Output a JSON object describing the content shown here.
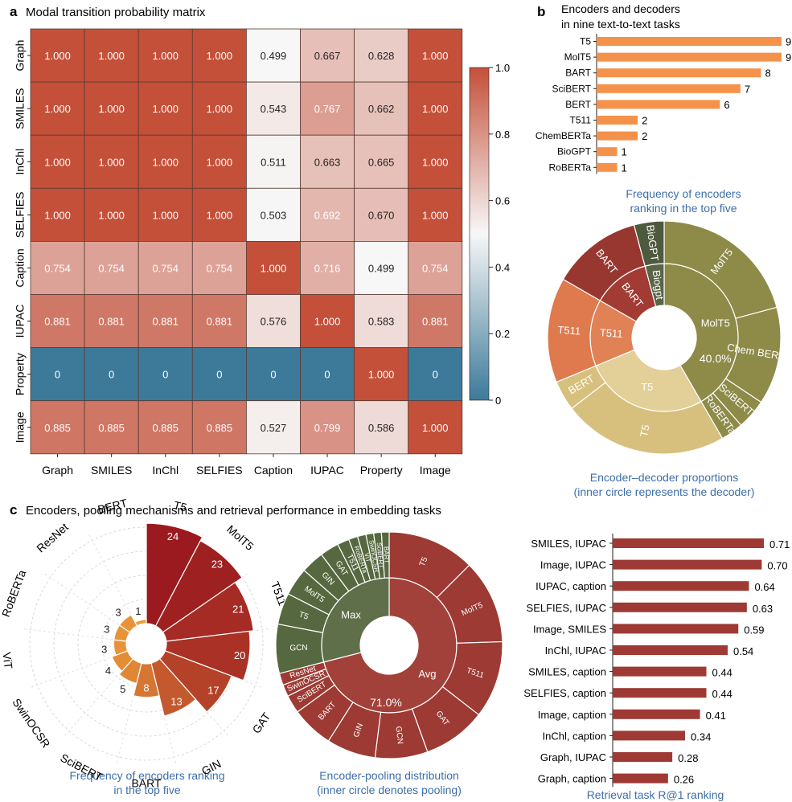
{
  "panel_a": {
    "letter": "a",
    "title": "Modal transition probability matrix",
    "chart_data": {
      "type": "heatmap",
      "rows": [
        "Graph",
        "SMILES",
        "InChl",
        "SELFIES",
        "Caption",
        "IUPAC",
        "Property",
        "Image"
      ],
      "cols": [
        "Graph",
        "SMILES",
        "InChl",
        "SELFIES",
        "Caption",
        "IUPAC",
        "Property",
        "Image"
      ],
      "values": [
        [
          1.0,
          1.0,
          1.0,
          1.0,
          0.499,
          0.667,
          0.628,
          1.0
        ],
        [
          1.0,
          1.0,
          1.0,
          1.0,
          0.543,
          0.767,
          0.662,
          1.0
        ],
        [
          1.0,
          1.0,
          1.0,
          1.0,
          0.511,
          0.663,
          0.665,
          1.0
        ],
        [
          1.0,
          1.0,
          1.0,
          1.0,
          0.503,
          0.692,
          0.67,
          1.0
        ],
        [
          0.754,
          0.754,
          0.754,
          0.754,
          1.0,
          0.716,
          0.499,
          0.754
        ],
        [
          0.881,
          0.881,
          0.881,
          0.881,
          0.576,
          1.0,
          0.583,
          0.881
        ],
        [
          0,
          0,
          0,
          0,
          0,
          0,
          1.0,
          0
        ],
        [
          0.885,
          0.885,
          0.885,
          0.885,
          0.527,
          0.799,
          0.586,
          1.0
        ]
      ],
      "labels": [
        [
          "1.000",
          "1.000",
          "1.000",
          "1.000",
          "0.499",
          "0.667",
          "0.628",
          "1.000"
        ],
        [
          "1.000",
          "1.000",
          "1.000",
          "1.000",
          "0.543",
          "0.767",
          "0.662",
          "1.000"
        ],
        [
          "1.000",
          "1.000",
          "1.000",
          "1.000",
          "0.511",
          "0.663",
          "0.665",
          "1.000"
        ],
        [
          "1.000",
          "1.000",
          "1.000",
          "1.000",
          "0.503",
          "0.692",
          "0.670",
          "1.000"
        ],
        [
          "0.754",
          "0.754",
          "0.754",
          "0.754",
          "1.000",
          "0.716",
          "0.499",
          "0.754"
        ],
        [
          "0.881",
          "0.881",
          "0.881",
          "0.881",
          "0.576",
          "1.000",
          "0.583",
          "0.881"
        ],
        [
          "0",
          "0",
          "0",
          "0",
          "0",
          "0",
          "1.000",
          "0"
        ],
        [
          "0.885",
          "0.885",
          "0.885",
          "0.885",
          "0.527",
          "0.799",
          "0.586",
          "1.000"
        ]
      ],
      "colorbar": {
        "min": 0,
        "max": 1,
        "ticks": [
          "0",
          "0.2",
          "0.4",
          "0.6",
          "0.8",
          "1.0"
        ],
        "colors": [
          "#3d7a9a",
          "#f7f7f7",
          "#c4503a"
        ]
      }
    }
  },
  "panel_b": {
    "letter": "b",
    "title_lines": [
      "Encoders and decoders",
      "in nine text-to-text tasks"
    ],
    "bar_chart": {
      "type": "bar",
      "orientation": "horizontal",
      "categories": [
        "T5",
        "MolT5",
        "BART",
        "SciBERT",
        "BERT",
        "T511",
        "ChemBERTa",
        "BioGPT",
        "RoBERTa"
      ],
      "values": [
        9,
        9,
        8,
        7,
        6,
        2,
        2,
        1,
        1
      ],
      "labels": [
        "9",
        "9",
        "8",
        "7",
        "6",
        "2",
        "2",
        "1",
        "1"
      ],
      "color": "#f4924c",
      "caption_lines": [
        "Frequency of encoders",
        "ranking in the top five"
      ]
    },
    "sunburst": {
      "type": "pie",
      "inner": [
        {
          "label": "MolT5",
          "value": 40
        },
        {
          "label": "T5",
          "value": 26
        },
        {
          "label": "T511",
          "value": 14
        },
        {
          "label": "BART",
          "value": 12
        },
        {
          "label": "Biogpt",
          "value": 4
        }
      ],
      "outer": [
        {
          "label": "MolT5",
          "value": 20,
          "parent": "MolT5"
        },
        {
          "label": "Chem BERTa",
          "value": 13,
          "parent": "MolT5"
        },
        {
          "label": "SciBERT",
          "value": 4,
          "parent": "MolT5"
        },
        {
          "label": "RoBERTa",
          "value": 3,
          "parent": "MolT5"
        },
        {
          "label": "T5",
          "value": 22,
          "parent": "T5"
        },
        {
          "label": "BERT",
          "value": 4,
          "parent": "T5"
        },
        {
          "label": "T511",
          "value": 14,
          "parent": "T511"
        },
        {
          "label": "BART",
          "value": 12,
          "parent": "BART"
        },
        {
          "label": "BioGPT",
          "value": 4,
          "parent": "Biogpt"
        }
      ],
      "center_label": "40.0%",
      "caption_lines": [
        "Encoder–decoder proportions",
        "(inner circle represents the decoder)"
      ]
    }
  },
  "panel_c": {
    "letter": "c",
    "title": "Encoders, pooling mechanisms and retrieval performance in embedding tasks",
    "polar": {
      "type": "bar",
      "categories": [
        "T5",
        "MolT5",
        "T511",
        "GCN",
        "GAT",
        "GIN",
        "BART",
        "SciBERT",
        "SwinOCSR",
        "ViT",
        "RoBERTa",
        "ResNet",
        "BERT"
      ],
      "values": [
        24,
        23,
        21,
        20,
        17,
        13,
        8,
        5,
        4,
        3,
        3,
        3,
        1
      ],
      "labels": [
        "24",
        "23",
        "21",
        "20",
        "17",
        "13",
        "8",
        "5",
        "4",
        "3",
        "3",
        "3",
        "1"
      ],
      "caption_lines": [
        "Frequency of encoders ranking",
        "in the top five"
      ]
    },
    "sunburst": {
      "type": "pie",
      "inner": [
        {
          "label": "Avg",
          "value": 71
        },
        {
          "label": "Max",
          "value": 29
        }
      ],
      "outer": [
        {
          "label": "T5",
          "value": 12.5,
          "parent": "Avg"
        },
        {
          "label": "MolT5",
          "value": 12,
          "parent": "Avg"
        },
        {
          "label": "T511",
          "value": 11,
          "parent": "Avg"
        },
        {
          "label": "GAT",
          "value": 9,
          "parent": "Avg"
        },
        {
          "label": "GCN",
          "value": 7.5,
          "parent": "Avg"
        },
        {
          "label": "GIN",
          "value": 7,
          "parent": "Avg"
        },
        {
          "label": "BART",
          "value": 6,
          "parent": "Avg"
        },
        {
          "label": "SciBERT",
          "value": 2.6,
          "parent": "Avg"
        },
        {
          "label": "SwinOCSR",
          "value": 1.7,
          "parent": "Avg"
        },
        {
          "label": "ResNet",
          "value": 1.7,
          "parent": "Avg"
        },
        {
          "label": "GCN",
          "value": 7,
          "parent": "Max"
        },
        {
          "label": "T5",
          "value": 4.5,
          "parent": "Max"
        },
        {
          "label": "MolT5",
          "value": 4,
          "parent": "Max"
        },
        {
          "label": "GIN",
          "value": 3.3,
          "parent": "Max"
        },
        {
          "label": "GAT",
          "value": 2.7,
          "parent": "Max"
        },
        {
          "label": "T511",
          "value": 1.7,
          "parent": "Max"
        },
        {
          "label": "RoBERTa",
          "value": 1.3,
          "parent": "Max"
        },
        {
          "label": "ViT",
          "value": 1.2,
          "parent": "Max"
        },
        {
          "label": "SwinOCSR",
          "value": 1.1,
          "parent": "Max"
        },
        {
          "label": "SciBERT",
          "value": 1.1,
          "parent": "Max"
        },
        {
          "label": "BART",
          "value": 1.1,
          "parent": "Max"
        }
      ],
      "center_label": "71.0%",
      "caption_lines": [
        "Encoder-pooling distribution",
        "(inner circle denotes pooling)"
      ]
    },
    "retrieval": {
      "type": "bar",
      "orientation": "horizontal",
      "categories": [
        "SMILES, IUPAC",
        "Image, IUPAC",
        "IUPAC, caption",
        "SELFIES, IUPAC",
        "Image, SMILES",
        "InChl, IUPAC",
        "SMILES, caption",
        "SELFIES, caption",
        "Image, caption",
        "InChl, caption",
        "Graph, IUPAC",
        "Graph, caption"
      ],
      "values": [
        0.71,
        0.7,
        0.64,
        0.63,
        0.59,
        0.54,
        0.44,
        0.44,
        0.41,
        0.34,
        0.28,
        0.26
      ],
      "labels": [
        "0.71",
        "0.70",
        "0.64",
        "0.63",
        "0.59",
        "0.54",
        "0.44",
        "0.44",
        "0.41",
        "0.34",
        "0.28",
        "0.26"
      ],
      "color": "#9e3a33",
      "caption": "Retrieval task R@1 ranking"
    }
  }
}
